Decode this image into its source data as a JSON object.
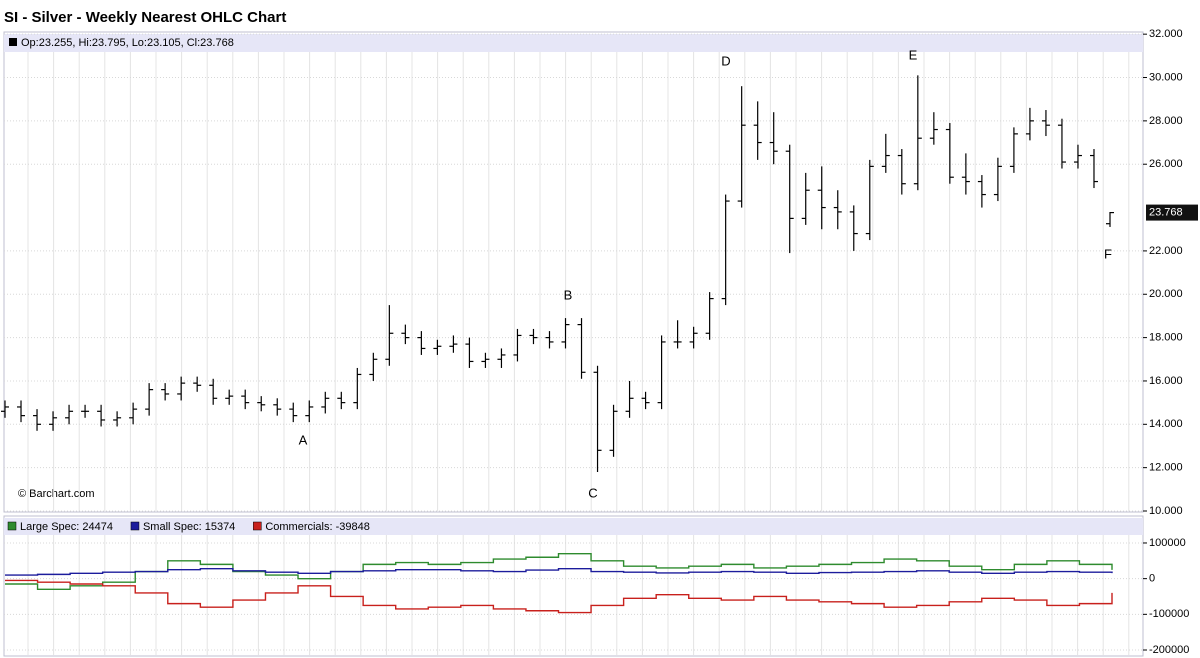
{
  "chart_data": [
    {
      "type": "ohlc",
      "title": "SI - Silver - Weekly Nearest OHLC Chart",
      "ohlc_legend": "Op:23.255, Hi:23.795, Lo:23.105, Cl:23.768",
      "copyright": "© Barchart.com",
      "annotations": [
        "A",
        "B",
        "C",
        "D",
        "E",
        "F"
      ],
      "color": "#000000",
      "grid": true,
      "open": [
        14.6,
        14.8,
        14.4,
        14.0,
        14.3,
        14.6,
        14.6,
        14.2,
        14.3,
        14.7,
        15.6,
        15.4,
        15.9,
        15.8,
        15.2,
        15.3,
        15.0,
        14.9,
        14.7,
        14.4,
        14.8,
        15.2,
        15.0,
        16.3,
        17.0,
        18.2,
        18.0,
        17.5,
        17.6,
        17.7,
        16.9,
        17.0,
        17.2,
        18.1,
        18.0,
        17.8,
        18.6,
        16.4,
        12.8,
        14.6,
        15.2,
        15.0,
        17.8,
        17.8,
        18.2,
        19.8,
        24.3,
        27.8,
        27.0,
        26.6,
        23.5,
        24.8,
        24.0,
        23.8,
        22.8,
        25.9,
        26.4,
        25.1,
        27.2,
        27.6,
        25.4,
        25.2,
        24.6,
        25.9,
        27.4,
        28.0,
        27.8,
        26.1,
        26.4,
        23.255
      ],
      "high": [
        15.1,
        15.1,
        14.7,
        14.6,
        14.9,
        14.9,
        14.9,
        14.6,
        15.0,
        15.9,
        15.9,
        16.2,
        16.2,
        16.1,
        15.6,
        15.6,
        15.3,
        15.2,
        15.0,
        15.1,
        15.5,
        15.5,
        16.6,
        17.3,
        19.5,
        18.6,
        18.3,
        17.9,
        18.1,
        18.0,
        17.3,
        17.5,
        18.4,
        18.4,
        18.3,
        18.9,
        18.9,
        16.7,
        14.9,
        16.0,
        15.5,
        18.1,
        18.8,
        18.5,
        20.1,
        24.6,
        29.6,
        28.9,
        28.4,
        26.9,
        25.6,
        25.9,
        24.8,
        24.1,
        26.2,
        27.4,
        26.7,
        30.1,
        28.4,
        27.9,
        26.5,
        25.5,
        26.3,
        27.7,
        28.6,
        28.5,
        28.1,
        26.9,
        26.7,
        23.795
      ],
      "low": [
        14.3,
        14.1,
        13.7,
        13.7,
        14.0,
        14.3,
        13.9,
        13.9,
        14.0,
        14.4,
        15.1,
        15.1,
        15.5,
        14.9,
        14.9,
        14.7,
        14.6,
        14.4,
        14.1,
        14.1,
        14.5,
        14.7,
        14.7,
        16.0,
        16.7,
        17.7,
        17.2,
        17.2,
        17.3,
        16.6,
        16.6,
        16.6,
        16.9,
        17.7,
        17.5,
        17.5,
        16.1,
        11.8,
        12.5,
        14.3,
        14.7,
        14.7,
        17.5,
        17.5,
        17.9,
        19.5,
        24.0,
        26.2,
        26.0,
        21.9,
        23.2,
        23.0,
        23.0,
        22.0,
        22.5,
        25.6,
        24.6,
        24.8,
        26.9,
        25.1,
        24.6,
        24.0,
        24.3,
        25.6,
        27.1,
        27.3,
        25.8,
        25.8,
        24.9,
        23.105
      ],
      "close": [
        14.8,
        14.4,
        14.0,
        14.3,
        14.6,
        14.6,
        14.2,
        14.3,
        14.7,
        15.6,
        15.4,
        15.9,
        15.8,
        15.2,
        15.3,
        15.0,
        14.9,
        14.7,
        14.4,
        14.8,
        15.2,
        15.0,
        16.3,
        17.0,
        18.2,
        18.0,
        17.5,
        17.6,
        17.7,
        16.9,
        17.0,
        17.2,
        18.1,
        18.0,
        17.8,
        18.6,
        16.4,
        12.8,
        14.6,
        15.2,
        15.0,
        17.8,
        17.8,
        18.2,
        19.8,
        24.3,
        27.8,
        27.0,
        26.6,
        23.5,
        24.8,
        24.0,
        23.8,
        22.8,
        25.9,
        26.4,
        25.1,
        27.2,
        27.6,
        25.4,
        25.2,
        24.6,
        25.9,
        27.4,
        28.0,
        27.8,
        26.1,
        26.4,
        25.2,
        23.768
      ],
      "ylim": [
        10,
        32.1
      ],
      "yticks": [
        {
          "value": 32,
          "label": "32.000"
        },
        {
          "value": 30,
          "label": "30.000"
        },
        {
          "value": 28,
          "label": "28.000"
        },
        {
          "value": 26,
          "label": "26.000"
        },
        {
          "value": 22,
          "label": "22.000"
        },
        {
          "value": 20,
          "label": "20.000"
        },
        {
          "value": 18,
          "label": "18.000"
        },
        {
          "value": 16,
          "label": "16.000"
        },
        {
          "value": 14,
          "label": "14.000"
        },
        {
          "value": 12,
          "label": "12.000"
        },
        {
          "value": 10,
          "label": "10.000"
        }
      ]
    },
    {
      "type": "line",
      "grid": true,
      "series": [
        {
          "name": "Large Spec: 24474",
          "color": "#2e8b2e",
          "values": [
            -15000,
            -30000,
            -20000,
            -10000,
            20000,
            50000,
            40000,
            20000,
            10000,
            0,
            20000,
            40000,
            45000,
            40000,
            45000,
            55000,
            60000,
            70000,
            50000,
            35000,
            30000,
            35000,
            40000,
            30000,
            35000,
            40000,
            45000,
            55000,
            50000,
            35000,
            25000,
            40000,
            50000,
            40000,
            24474
          ]
        },
        {
          "name": "Small Spec: 15374",
          "color": "#1c1c9c",
          "values": [
            10000,
            12000,
            15000,
            18000,
            20000,
            25000,
            28000,
            22000,
            18000,
            15000,
            20000,
            22000,
            25000,
            25000,
            22000,
            20000,
            24000,
            28000,
            20000,
            18000,
            16000,
            18000,
            20000,
            18000,
            15000,
            17000,
            18000,
            20000,
            22000,
            18000,
            15000,
            18000,
            20000,
            18000,
            15374
          ]
        },
        {
          "name": "Commercials: -39848",
          "color": "#c8201c",
          "values": [
            -5000,
            -10000,
            -15000,
            -20000,
            -40000,
            -70000,
            -80000,
            -60000,
            -40000,
            -20000,
            -50000,
            -75000,
            -85000,
            -80000,
            -75000,
            -85000,
            -90000,
            -95000,
            -75000,
            -55000,
            -45000,
            -55000,
            -60000,
            -50000,
            -60000,
            -65000,
            -70000,
            -80000,
            -75000,
            -65000,
            -55000,
            -60000,
            -75000,
            -70000,
            -39848
          ]
        }
      ],
      "ylim": [
        -200000,
        170000
      ],
      "yticks": [
        100000,
        0,
        -100000,
        -200000
      ]
    }
  ]
}
